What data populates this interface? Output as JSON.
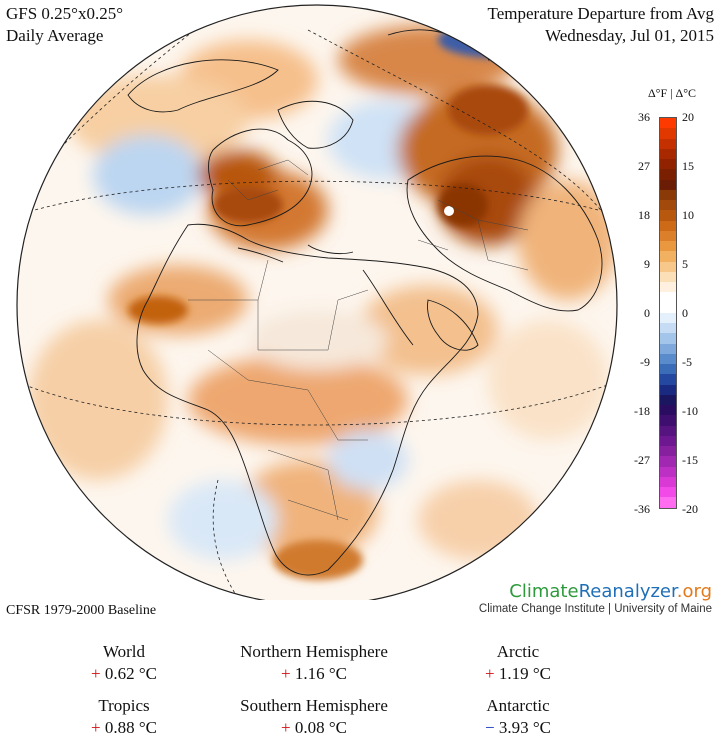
{
  "header": {
    "model": "GFS 0.25°x0.25°",
    "period": "Daily Average",
    "title": "Temperature Departure from Avg",
    "date": "Wednesday, Jul 01, 2015"
  },
  "scale": {
    "unit_label": "Δ°F | Δ°C",
    "f_ticks": [
      "36",
      "27",
      "18",
      "9",
      "0",
      "-9",
      "-18",
      "-27",
      "-36"
    ],
    "c_ticks": [
      "20",
      "15",
      "10",
      "5",
      "0",
      "-5",
      "-10",
      "-15",
      "-20"
    ],
    "colors": [
      "#ff3a00",
      "#e13800",
      "#c43000",
      "#a82800",
      "#902200",
      "#7a1f00",
      "#6a1c05",
      "#8a3a07",
      "#a24a0c",
      "#b8580f",
      "#cc6a18",
      "#dc7f2a",
      "#e9983f",
      "#f2b160",
      "#f7c889",
      "#fbdfb6",
      "#fff0e0",
      "#ffffff",
      "#ffffff",
      "#e4f0fb",
      "#c5dcf4",
      "#a3c5ea",
      "#7fa9dc",
      "#5a8bcb",
      "#3a6cb7",
      "#2448a0",
      "#1a2a80",
      "#1b1660",
      "#2a0d60",
      "#3f0f70",
      "#561480",
      "#6d1890",
      "#86209f",
      "#a128b1",
      "#bd30c4",
      "#d93ad6",
      "#f24ae8",
      "#ff6cf0"
    ]
  },
  "baseline": "CFSR 1979-2000 Baseline",
  "brand": {
    "name_part1": "Climate",
    "name_part2": "Reanalyzer",
    "name_part3": ".org",
    "subtitle": "Climate Change Institute | University of Maine",
    "color1": "#2e9a3c",
    "color2": "#1f6fb7",
    "color3": "#e27a1b"
  },
  "stats": [
    {
      "label": "World",
      "sign": "+",
      "value": "0.62 °C",
      "sign_color": "#d01010"
    },
    {
      "label": "Northern Hemisphere",
      "sign": "+",
      "value": "1.16 °C",
      "sign_color": "#d01010"
    },
    {
      "label": "Arctic",
      "sign": "+",
      "value": "1.19 °C",
      "sign_color": "#d01010"
    },
    {
      "label": "Tropics",
      "sign": "+",
      "value": "0.88 °C",
      "sign_color": "#d01010"
    },
    {
      "label": "Southern Hemisphere",
      "sign": "+",
      "value": "0.08 °C",
      "sign_color": "#d01010"
    },
    {
      "label": "Antarctic",
      "sign": "−",
      "value": "3.93 °C",
      "sign_color": "#1030c0"
    }
  ]
}
